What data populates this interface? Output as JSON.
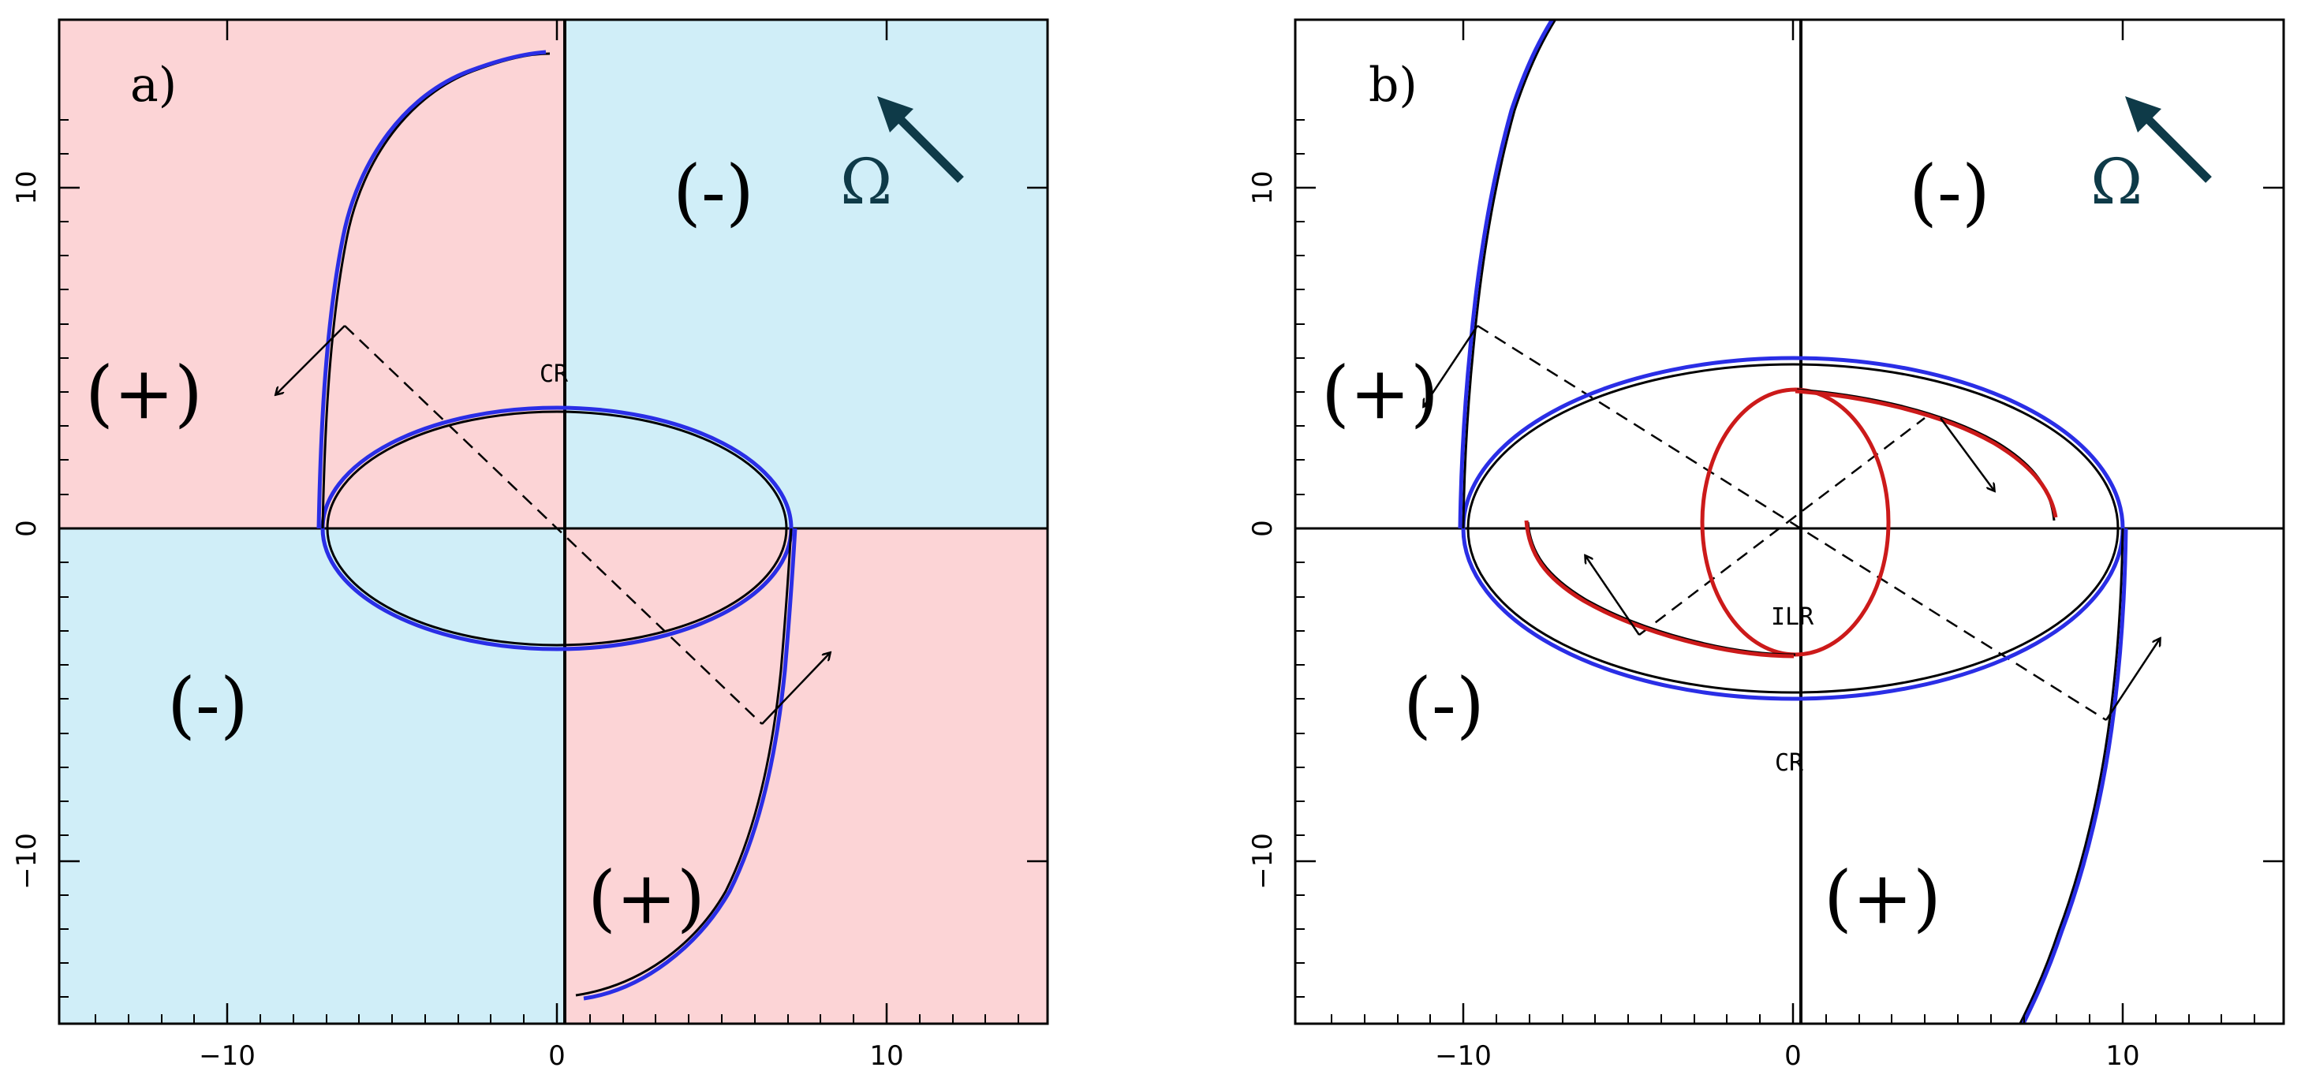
{
  "colors": {
    "pink": "#fcd4d6",
    "cyan": "#d0eef8",
    "blue_curve": "#2a2ee6",
    "red_curve": "#cc1a1a",
    "axis": "#000000",
    "omega_arrow": "#0e3a48"
  },
  "axes": {
    "xlim": [
      -15,
      15
    ],
    "ylim": [
      -15,
      15
    ],
    "x_tick_labels": [
      "−10",
      "0",
      "10"
    ],
    "y_tick_labels": [
      "10",
      "0",
      "−10"
    ],
    "x_tick_values": [
      -10,
      0,
      10
    ],
    "y_tick_values": [
      10,
      0,
      -10
    ]
  },
  "panel_a": {
    "label": "a)",
    "quadrant_signs": {
      "upper_left": "(+)",
      "upper_right": "(-)",
      "lower_left": "(-)",
      "lower_right": "(+)"
    },
    "omega": "Ω",
    "resonance_label": "CR",
    "cr_ellipse": {
      "cx": 0,
      "cy": 0,
      "a": 7.3,
      "b": 3.7
    }
  },
  "panel_b": {
    "label": "b)",
    "quadrant_signs": {
      "upper_left": "(+)",
      "upper_right": "(-)",
      "lower_left": "(-)",
      "lower_right": "(+)"
    },
    "omega": "Ω",
    "resonance_labels": [
      "CR",
      "ILR"
    ],
    "cr_ellipse": {
      "cx": 0,
      "cy": 0,
      "a": 10.0,
      "b": 5.1
    },
    "ilr_ellipse": {
      "cx": 0,
      "cy": 0,
      "a": 2.8,
      "b": 4.0
    }
  }
}
